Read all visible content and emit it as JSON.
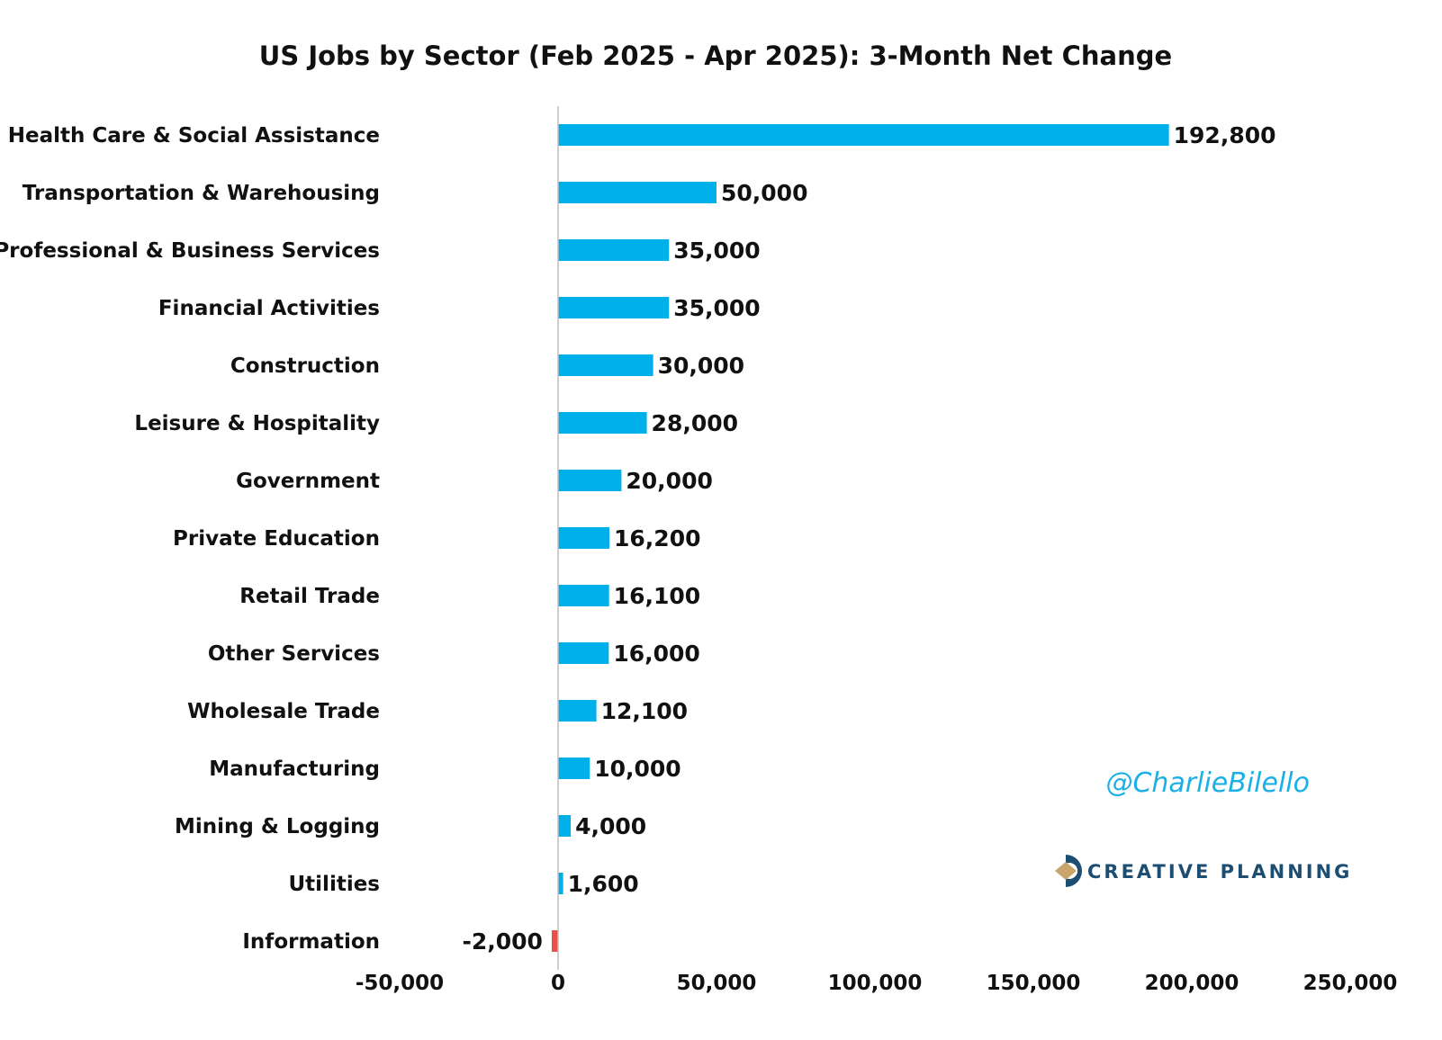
{
  "chart_data": {
    "type": "bar",
    "orientation": "horizontal",
    "title": "US Jobs by Sector (Feb 2025 - Apr 2025): 3-Month Net Change",
    "categories": [
      "Health Care & Social Assistance",
      "Transportation & Warehousing",
      "Professional & Business Services",
      "Financial Activities",
      "Construction",
      "Leisure & Hospitality",
      "Government",
      "Private Education",
      "Retail Trade",
      "Other Services",
      "Wholesale Trade",
      "Manufacturing",
      "Mining & Logging",
      "Utilities",
      "Information"
    ],
    "values": [
      192800,
      50000,
      35000,
      35000,
      30000,
      28000,
      20000,
      16200,
      16100,
      16000,
      12100,
      10000,
      4000,
      1600,
      -2000
    ],
    "value_labels": [
      "192,800",
      "50,000",
      "35,000",
      "35,000",
      "30,000",
      "28,000",
      "20,000",
      "16,200",
      "16,100",
      "16,000",
      "12,100",
      "10,000",
      "4,000",
      "1,600",
      "-2,000"
    ],
    "xlim": [
      -50000,
      250000
    ],
    "x_ticks": [
      -50000,
      0,
      50000,
      100000,
      150000,
      200000,
      250000
    ],
    "x_tick_labels": [
      "-50,000",
      "0",
      "50,000",
      "100,000",
      "150,000",
      "200,000",
      "250,000"
    ],
    "xlabel": "",
    "ylabel": "",
    "grid": false,
    "legend": "none",
    "colors": {
      "positive": "#00b0ea",
      "negative": "#e8504a",
      "axis": "#bfbfbf"
    }
  },
  "watermark": {
    "text": "@CharlieBilello"
  },
  "brand": {
    "name": "CREATIVE PLANNING",
    "colors": {
      "dark": "#1d4e72",
      "gold": "#c9a66b"
    }
  }
}
